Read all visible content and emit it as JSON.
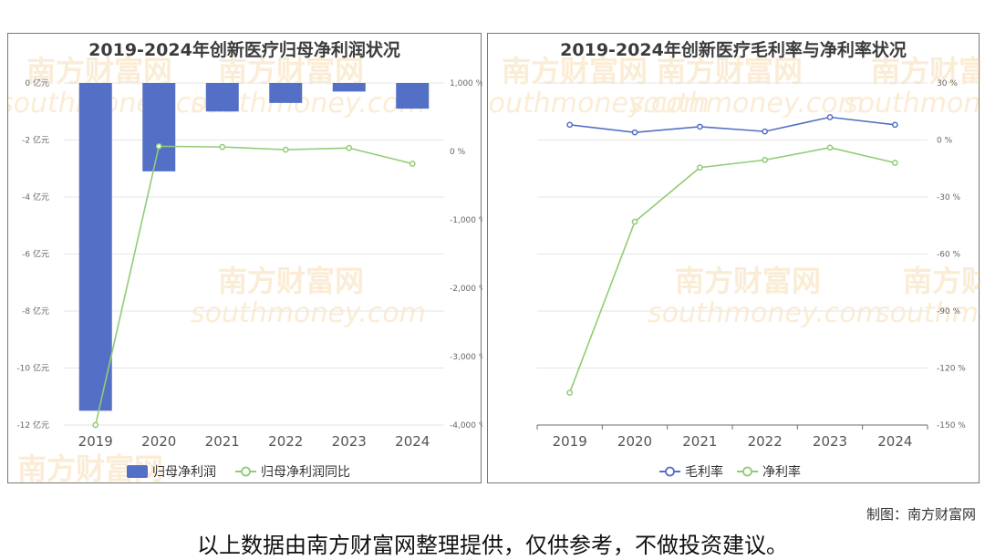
{
  "chart_data": [
    {
      "type": "bar",
      "title": "2019-2024年创新医疗归母净利润状况",
      "categories": [
        "2019",
        "2020",
        "2021",
        "2022",
        "2023",
        "2024"
      ],
      "series": [
        {
          "name": "归母净利润",
          "type": "bar",
          "axis": "left",
          "color": "#5470c6",
          "values": [
            -11.5,
            -3.1,
            -1.0,
            -0.7,
            -0.3,
            -0.9
          ]
        },
        {
          "name": "归母净利润同比",
          "type": "line",
          "axis": "right",
          "color": "#91cc75",
          "values": [
            -4000,
            75,
            65,
            25,
            50,
            -180
          ]
        }
      ],
      "yAxisLeft": {
        "min": -12,
        "max": 0,
        "ticks": [
          "0 亿元",
          "-2 亿元",
          "-4 亿元",
          "-6 亿元",
          "-8 亿元",
          "-10 亿元",
          "-12 亿元"
        ]
      },
      "yAxisRight": {
        "min": -4000,
        "max": 1000,
        "ticks": [
          "1,000 %",
          "0 %",
          "-1,000 %",
          "-2,000 %",
          "-3,000 %",
          "-4,000 %"
        ]
      },
      "grid": true,
      "legend": "bottom"
    },
    {
      "type": "line",
      "title": "2019-2024年创新医疗毛利率与净利率状况",
      "categories": [
        "2019",
        "2020",
        "2021",
        "2022",
        "2023",
        "2024"
      ],
      "series": [
        {
          "name": "毛利率",
          "color": "#5470c6",
          "values": [
            8,
            4,
            7,
            4.5,
            12,
            8
          ]
        },
        {
          "name": "净利率",
          "color": "#91cc75",
          "values": [
            -133,
            -43,
            -14.5,
            -10.5,
            -4,
            -12
          ]
        }
      ],
      "yAxisRight": {
        "min": -150,
        "max": 30,
        "ticks": [
          "30 %",
          "0 %",
          "-30 %",
          "-60 %",
          "-90 %",
          "-120 %",
          "-150 %"
        ]
      },
      "grid": true,
      "legend": "bottom"
    }
  ],
  "watermark": {
    "cn": "南方财富网",
    "en": "southmoney.com",
    "color": "#f5c98a"
  },
  "footer": {
    "credit": "制图：南方财富网",
    "disclaimer": "以上数据由南方财富网整理提供，仅供参考，不做投资建议。"
  }
}
